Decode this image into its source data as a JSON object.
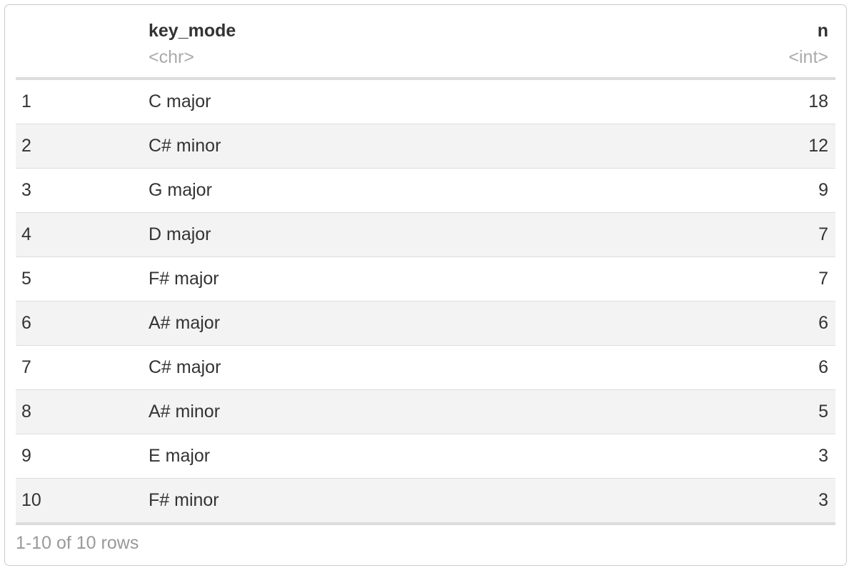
{
  "columns": [
    {
      "name": "",
      "type": ""
    },
    {
      "name": "key_mode",
      "type": "<chr>"
    },
    {
      "name": "n",
      "type": "<int>"
    }
  ],
  "rows": [
    [
      "1",
      "C major",
      "18"
    ],
    [
      "2",
      "C# minor",
      "12"
    ],
    [
      "3",
      "G major",
      "9"
    ],
    [
      "4",
      "D major",
      "7"
    ],
    [
      "5",
      "F# major",
      "7"
    ],
    [
      "6",
      "A# major",
      "6"
    ],
    [
      "7",
      "C# major",
      "6"
    ],
    [
      "8",
      "A# minor",
      "5"
    ],
    [
      "9",
      "E major",
      "3"
    ],
    [
      "10",
      "F# minor",
      "3"
    ]
  ],
  "footer": "1-10 of 10 rows"
}
